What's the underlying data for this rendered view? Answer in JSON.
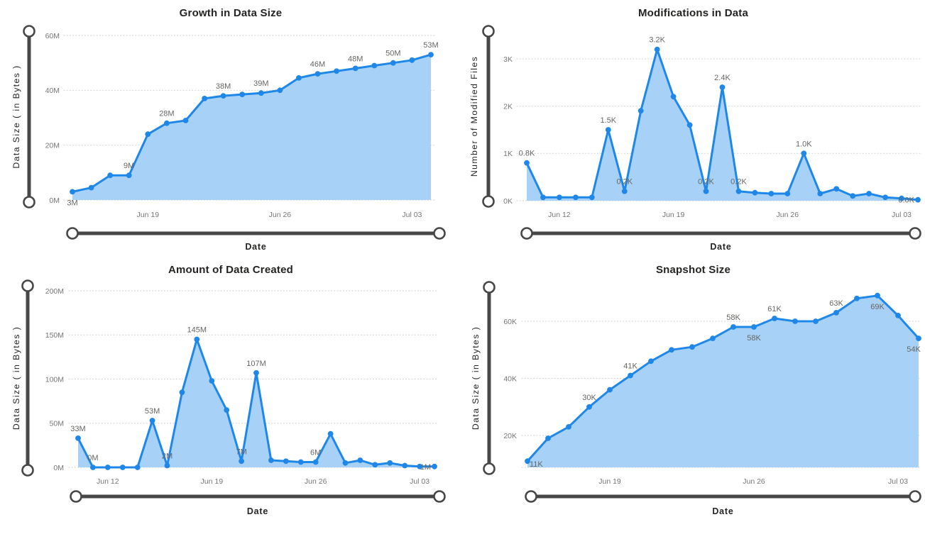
{
  "colors": {
    "line": "#1E87E8",
    "area_fill": "#A7D1F7",
    "slider_track": "#474747",
    "slider_handle_fill": "#FFFFFF",
    "gridline": "#D8D8D4",
    "tick_label": "#767674",
    "data_label": "#666663",
    "title": "#252423",
    "axis_title": "#252423"
  },
  "chart_data": [
    {
      "type": "area",
      "title": "Growth in Data Size",
      "ylabel": "Data Size ( in Bytes )",
      "xlabel": "Date",
      "unit": "M (bytes)",
      "ylim": [
        0,
        61
      ],
      "grid": "dotted-horizontal",
      "values": [
        3,
        4.5,
        9,
        9,
        24,
        28,
        29,
        37,
        38,
        38.5,
        39,
        40,
        44.5,
        46,
        47,
        48,
        49,
        50,
        51,
        53
      ],
      "y_ticks": [
        {
          "value": 0,
          "label": "0M"
        },
        {
          "value": 20,
          "label": "20M"
        },
        {
          "value": 40,
          "label": "40M"
        },
        {
          "value": 60,
          "label": "60M"
        }
      ],
      "x_ticks": [
        {
          "index": 4,
          "label": "Jun 19"
        },
        {
          "index": 11,
          "label": "Jun 26"
        },
        {
          "index": 18,
          "label": "Jul 03"
        }
      ],
      "point_labels": [
        {
          "index": 0,
          "text": "3M",
          "position": "below"
        },
        {
          "index": 3,
          "text": "9M",
          "position": "above"
        },
        {
          "index": 5,
          "text": "28M",
          "position": "above"
        },
        {
          "index": 8,
          "text": "38M",
          "position": "above"
        },
        {
          "index": 10,
          "text": "39M",
          "position": "above"
        },
        {
          "index": 13,
          "text": "46M",
          "position": "above"
        },
        {
          "index": 15,
          "text": "48M",
          "position": "above"
        },
        {
          "index": 17,
          "text": "50M",
          "position": "above"
        },
        {
          "index": 19,
          "text": "53M",
          "position": "above"
        }
      ]
    },
    {
      "type": "area",
      "title": "Modifications in Data",
      "ylabel": "Number of Modified Files",
      "xlabel": "Date",
      "unit": "K (files)",
      "ylim": [
        0,
        3.56
      ],
      "grid": "dotted-horizontal",
      "values": [
        0.8,
        0.07,
        0.07,
        0.07,
        0.07,
        1.5,
        0.2,
        1.9,
        3.2,
        2.2,
        1.6,
        0.2,
        2.4,
        0.2,
        0.17,
        0.15,
        0.15,
        1.0,
        0.15,
        0.25,
        0.1,
        0.15,
        0.07,
        0.05,
        0.02
      ],
      "y_ticks": [
        {
          "value": 0,
          "label": "0K"
        },
        {
          "value": 1,
          "label": "1K"
        },
        {
          "value": 2,
          "label": "2K"
        },
        {
          "value": 3,
          "label": "3K"
        }
      ],
      "x_ticks": [
        {
          "index": 2,
          "label": "Jun 12"
        },
        {
          "index": 9,
          "label": "Jun 19"
        },
        {
          "index": 16,
          "label": "Jun 26"
        },
        {
          "index": 23,
          "label": "Jul 03"
        }
      ],
      "point_labels": [
        {
          "index": 0,
          "text": "0.8K",
          "position": "above"
        },
        {
          "index": 5,
          "text": "1.5K",
          "position": "above"
        },
        {
          "index": 6,
          "text": "0.2K",
          "position": "above"
        },
        {
          "index": 8,
          "text": "3.2K",
          "position": "above"
        },
        {
          "index": 11,
          "text": "0.2K",
          "position": "above"
        },
        {
          "index": 12,
          "text": "2.4K",
          "position": "above"
        },
        {
          "index": 13,
          "text": "0.2K",
          "position": "above"
        },
        {
          "index": 17,
          "text": "1.0K",
          "position": "above"
        },
        {
          "index": 24,
          "text": "0.0K",
          "position": "left"
        }
      ]
    },
    {
      "type": "area",
      "title": "Amount of Data Created",
      "ylabel": "Data Size ( in Bytes )",
      "xlabel": "Date",
      "unit": "M (bytes)",
      "ylim": [
        0,
        205
      ],
      "grid": "dotted-horizontal",
      "values": [
        33,
        0,
        0,
        0,
        0,
        53,
        2,
        85,
        145,
        98,
        65,
        7,
        107,
        8,
        7,
        6,
        6,
        38,
        5,
        8,
        3,
        5,
        2,
        1,
        1
      ],
      "y_ticks": [
        {
          "value": 0,
          "label": "0M"
        },
        {
          "value": 50,
          "label": "50M"
        },
        {
          "value": 100,
          "label": "100M"
        },
        {
          "value": 150,
          "label": "150M"
        },
        {
          "value": 200,
          "label": "200M"
        }
      ],
      "x_ticks": [
        {
          "index": 2,
          "label": "Jun 12"
        },
        {
          "index": 9,
          "label": "Jun 19"
        },
        {
          "index": 16,
          "label": "Jun 26"
        },
        {
          "index": 23,
          "label": "Jul 03"
        }
      ],
      "point_labels": [
        {
          "index": 0,
          "text": "33M",
          "position": "above"
        },
        {
          "index": 1,
          "text": "0M",
          "position": "above"
        },
        {
          "index": 5,
          "text": "53M",
          "position": "above"
        },
        {
          "index": 6,
          "text": "2M",
          "position": "above"
        },
        {
          "index": 8,
          "text": "145M",
          "position": "above"
        },
        {
          "index": 11,
          "text": "7M",
          "position": "above"
        },
        {
          "index": 12,
          "text": "107M",
          "position": "above"
        },
        {
          "index": 16,
          "text": "6M",
          "position": "above"
        },
        {
          "index": 24,
          "text": "1M",
          "position": "left"
        }
      ]
    },
    {
      "type": "area",
      "title": "Snapshot Size",
      "ylabel": "Data Size ( in Bytes )",
      "xlabel": "Date",
      "unit": "K (bytes)",
      "ylim": [
        8.8,
        72
      ],
      "grid": "dotted-horizontal",
      "values": [
        11,
        19,
        23,
        30,
        36,
        41,
        46,
        50,
        51,
        54,
        58,
        58,
        61,
        60,
        60,
        63,
        68,
        69,
        62,
        54
      ],
      "y_ticks": [
        {
          "value": 20,
          "label": "20K"
        },
        {
          "value": 40,
          "label": "40K"
        },
        {
          "value": 60,
          "label": "60K"
        }
      ],
      "x_ticks": [
        {
          "index": 4,
          "label": "Jun 19"
        },
        {
          "index": 11,
          "label": "Jun 26"
        },
        {
          "index": 18,
          "label": "Jul 03"
        }
      ],
      "point_labels": [
        {
          "index": 0,
          "text": "11K",
          "position": "right"
        },
        {
          "index": 3,
          "text": "30K",
          "position": "above"
        },
        {
          "index": 5,
          "text": "41K",
          "position": "above"
        },
        {
          "index": 10,
          "text": "58K",
          "position": "above"
        },
        {
          "index": 11,
          "text": "58K",
          "position": "below"
        },
        {
          "index": 12,
          "text": "61K",
          "position": "above"
        },
        {
          "index": 15,
          "text": "63K",
          "position": "above"
        },
        {
          "index": 17,
          "text": "69K",
          "position": "below"
        },
        {
          "index": 19,
          "text": "54K",
          "position": "below"
        }
      ]
    }
  ]
}
